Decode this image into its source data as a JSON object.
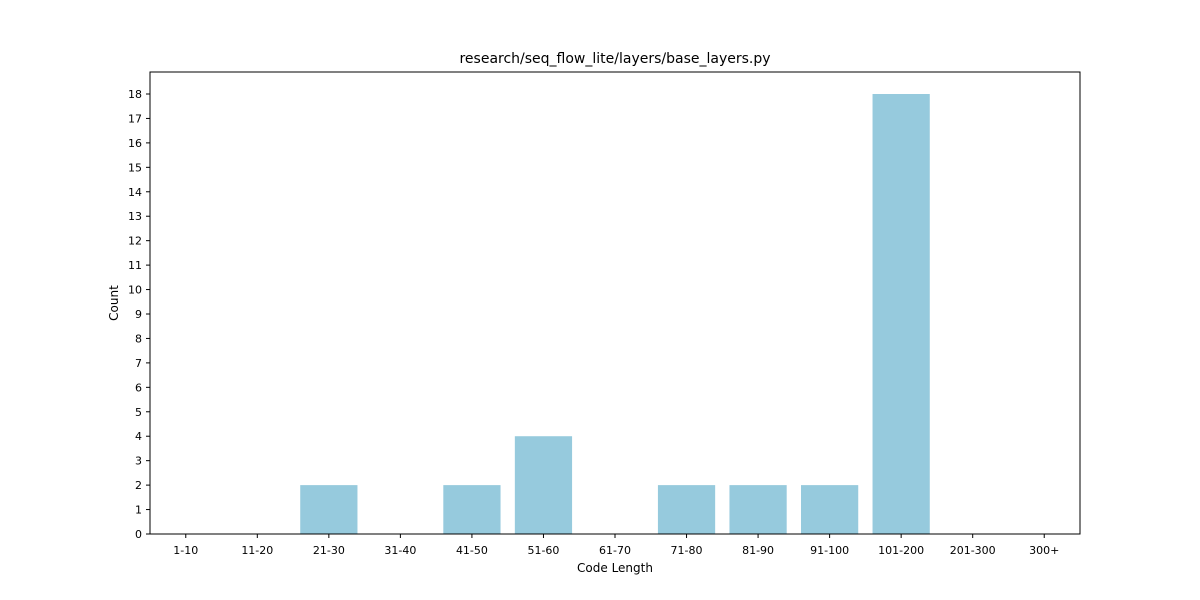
{
  "chart_data": {
    "type": "bar",
    "title": "research/seq_flow_lite/layers/base_layers.py",
    "xlabel": "Code Length",
    "ylabel": "Count",
    "categories": [
      "1-10",
      "11-20",
      "21-30",
      "31-40",
      "41-50",
      "51-60",
      "61-70",
      "71-80",
      "81-90",
      "91-100",
      "101-200",
      "201-300",
      "300+"
    ],
    "values": [
      0,
      0,
      2,
      0,
      2,
      4,
      0,
      2,
      2,
      2,
      18,
      0,
      0
    ],
    "ylim": [
      0,
      18.9
    ],
    "yticks": [
      0,
      1,
      2,
      3,
      4,
      5,
      6,
      7,
      8,
      9,
      10,
      11,
      12,
      13,
      14,
      15,
      16,
      17,
      18
    ],
    "grid": false,
    "bar_color": "#96cadd"
  }
}
